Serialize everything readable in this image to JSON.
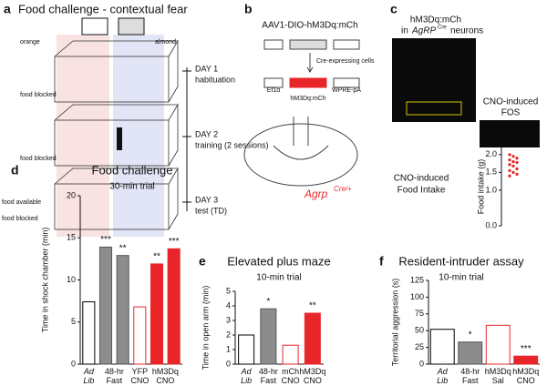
{
  "panels": {
    "a": {
      "letter": "a",
      "title": "Food challenge - contextual fear",
      "odor_left": "orange",
      "odor_right": "almond",
      "food_blocked": [
        "food blocked",
        "food blocked",
        "food blocked"
      ],
      "food_available": "food available",
      "days": [
        {
          "day": "DAY 1",
          "label": "habituation"
        },
        {
          "day": "DAY 2",
          "label": "training (2 sessions)"
        },
        {
          "day": "DAY 3",
          "label": "test (TD)"
        }
      ]
    },
    "b": {
      "letter": "b",
      "title": "AAV1-DIO-hM3Dq:mCh",
      "promoter": "Ef1α",
      "insert": "hM3Dq:mCh",
      "polya": "WPRE-pA",
      "arrow_label": "Cre-expressing cells",
      "gene": "Agrp",
      "genotype": "Cre/+"
    },
    "c": {
      "letter": "c",
      "line1": "hM3Dq:mCh",
      "line2_prefix": "in",
      "line2_gene": "AgRP",
      "line2_sup": "Cre",
      "line2_suffix": "neurons",
      "fos": [
        "CNO-induced",
        "FOS"
      ],
      "intake": [
        "CNO-induced",
        "Food Intake"
      ]
    },
    "d": {
      "letter": "d"
    },
    "e": {
      "letter": "e"
    },
    "f": {
      "letter": "f"
    }
  },
  "chart_data": [
    {
      "type": "scatter",
      "ylabel": "Food intake (g)",
      "values": [
        2.0,
        1.95,
        1.9,
        1.85,
        1.8,
        1.78,
        1.72,
        1.68,
        1.6,
        1.55,
        1.5,
        1.45,
        1.4
      ],
      "color": "#e32222",
      "ylim": [
        0,
        2.2
      ],
      "yticks": [
        {
          "value": 0,
          "label": "0.0"
        },
        {
          "value": 1,
          "label": "1.0"
        },
        {
          "value": 1.5,
          "label": "1.5"
        },
        {
          "value": 2,
          "label": "2.0"
        }
      ]
    },
    {
      "type": "bar",
      "title": "Food challenge",
      "subtitle": "30-min trial",
      "ylabel": "Time in shock chamber (min)",
      "categories": [
        "Ad Lib",
        "48-hr Fast",
        null,
        "YFP CNO",
        "hM3Dq CNO",
        null
      ],
      "values": [
        7.4,
        13.9,
        12.9,
        6.8,
        11.9,
        13.7
      ],
      "colors": [
        "#ffffff",
        "#8c8c8c",
        "#8c8c8c",
        "#ffffff",
        "#e8262a",
        "#e8262a"
      ],
      "edgecolors": [
        "#000000",
        "#555555",
        "#555555",
        "#e8262a",
        "#e8262a",
        "#e8262a"
      ],
      "annotations": [
        null,
        "***",
        "**",
        null,
        "**",
        "***"
      ],
      "ylim": [
        0,
        20
      ],
      "yticks": [
        0,
        5,
        10,
        15,
        20
      ]
    },
    {
      "type": "bar",
      "title": "Elevated plus maze",
      "subtitle": "10-min trial",
      "ylabel": "Time in open arm (min)",
      "categories": [
        "Ad Lib",
        "48-hr Fast",
        "mCh CNO",
        "hM3Dq CNO"
      ],
      "values": [
        2.0,
        3.8,
        1.3,
        3.5
      ],
      "colors": [
        "#ffffff",
        "#8c8c8c",
        "#ffffff",
        "#e8262a"
      ],
      "edgecolors": [
        "#000000",
        "#555555",
        "#e8262a",
        "#e8262a"
      ],
      "annotations": [
        null,
        "*",
        null,
        "**"
      ],
      "ylim": [
        0,
        5
      ],
      "yticks": [
        0,
        1,
        2,
        3,
        4,
        5
      ]
    },
    {
      "type": "bar",
      "title": "Resident-intruder assay",
      "subtitle": "10-min trial",
      "ylabel": "Territorial aggression (s)",
      "categories": [
        "Ad Lib",
        "48-hr Fast",
        "hM3Dq Sal",
        "hM3Dq CNO"
      ],
      "values": [
        52,
        33,
        58,
        12
      ],
      "colors": [
        "#ffffff",
        "#8c8c8c",
        "#ffffff",
        "#e8262a"
      ],
      "edgecolors": [
        "#000000",
        "#555555",
        "#e8262a",
        "#e8262a"
      ],
      "annotations": [
        null,
        "*",
        null,
        "***"
      ],
      "ylim": [
        0,
        125
      ],
      "yticks": [
        0,
        25,
        50,
        75,
        100,
        125
      ]
    }
  ]
}
